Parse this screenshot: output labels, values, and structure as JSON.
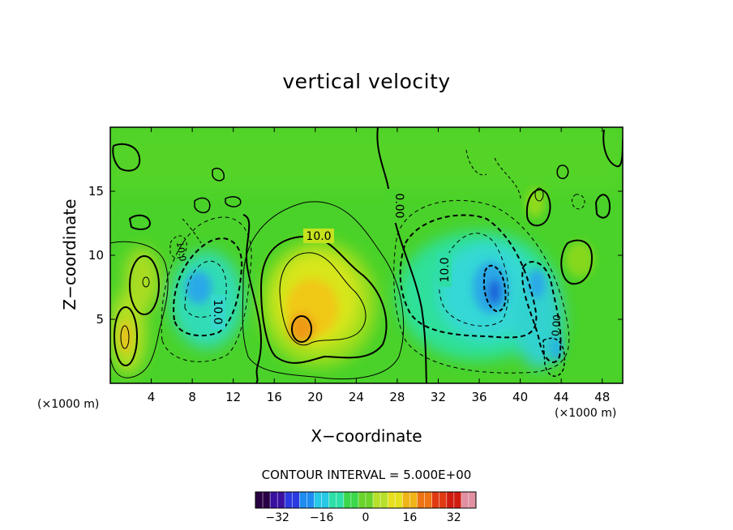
{
  "chart_data": {
    "type": "heatmap",
    "title": "vertical velocity",
    "xlabel": "X−coordinate",
    "ylabel": "Z−coordinate",
    "x_unit": "(×1000 m)",
    "z_unit": "(×1000 m)",
    "xlim": [
      0,
      50
    ],
    "ylim": [
      0,
      20
    ],
    "xticks": [
      4,
      8,
      12,
      16,
      20,
      24,
      28,
      32,
      36,
      40,
      44,
      48
    ],
    "yticks": [
      5,
      10,
      15
    ],
    "contour_interval_label": "CONTOUR INTERVAL = 5.000E+00",
    "contour_labels": [
      "10.0",
      "0.00",
      "10.0",
      "10.0",
      "10.0",
      "0.00"
    ],
    "colorbar": {
      "ticks": [
        "−32",
        "−16",
        "0",
        "16",
        "32"
      ],
      "range": [
        -40,
        40
      ]
    },
    "features": [
      {
        "kind": "updraft",
        "x": 20,
        "z": 6.5,
        "peak": 30
      },
      {
        "kind": "updraft",
        "x": 1.5,
        "z": 4,
        "peak": 22
      },
      {
        "kind": "updraft",
        "x": 3,
        "z": 8,
        "peak": 14
      },
      {
        "kind": "downdraft",
        "x": 37,
        "z": 7.5,
        "peak": -28
      },
      {
        "kind": "downdraft",
        "x": 9,
        "z": 7,
        "peak": -18
      },
      {
        "kind": "downdraft",
        "x": 42,
        "z": 4,
        "peak": -14
      }
    ]
  }
}
